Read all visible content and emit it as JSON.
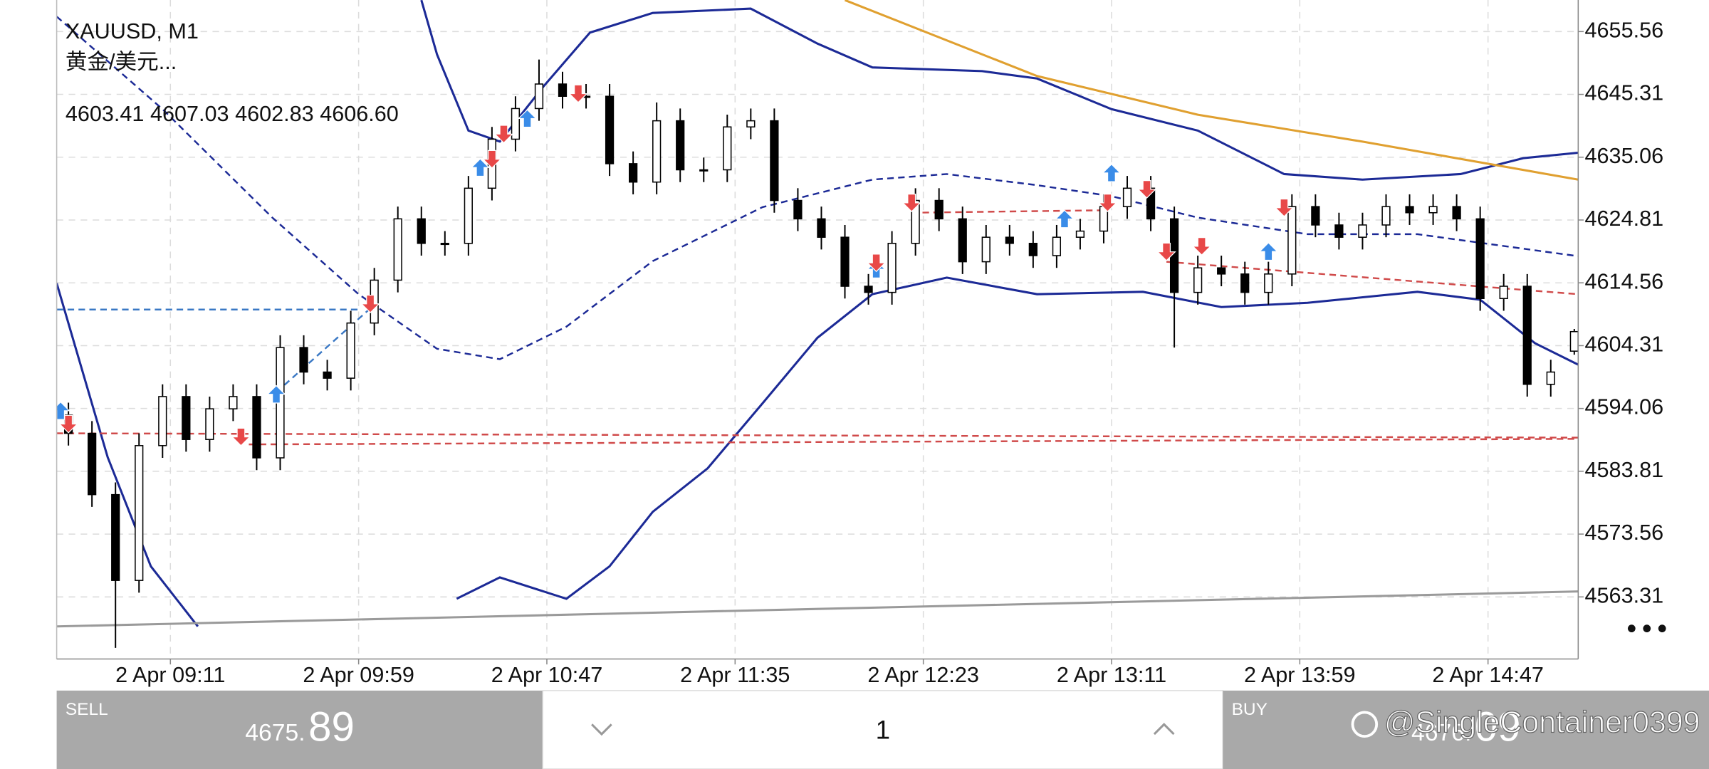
{
  "header": {
    "symbol": "XAUUSD, M1",
    "description": "黄金/美元...",
    "ohlc": "4603.41 4607.03 4602.83 4606.60"
  },
  "chart_data": {
    "type": "candlestick",
    "x": [
      3,
      9,
      15,
      21,
      27,
      33,
      39,
      45,
      51,
      57,
      63,
      69,
      75,
      81,
      87,
      93,
      99,
      105,
      111,
      117,
      123,
      129,
      135,
      141,
      147,
      153,
      159,
      165,
      171,
      177,
      183,
      189,
      195,
      201,
      207,
      213,
      219,
      225,
      231,
      237,
      243,
      249,
      255,
      261,
      267,
      273,
      279,
      285,
      291,
      297,
      303,
      309,
      315,
      321,
      327,
      333,
      339,
      345,
      351,
      357,
      363,
      369,
      375,
      381,
      387
    ],
    "open": [
      4593,
      4590,
      4580,
      4566,
      4588,
      4596,
      4589,
      4594,
      4596,
      4586,
      4604,
      4600,
      4599,
      4608,
      4615,
      4625,
      4621,
      4621,
      4630,
      4638,
      4643,
      4647,
      4645,
      4645,
      4634,
      4631,
      4641,
      4633,
      4633,
      4640,
      4641,
      4628,
      4625,
      4622,
      4614,
      4613,
      4621,
      4628,
      4625,
      4618,
      4622,
      4621,
      4619,
      4622,
      4623,
      4627,
      4630,
      4625,
      4613,
      4617,
      4616,
      4613,
      4616,
      4627,
      4624,
      4622,
      4624,
      4627,
      4626,
      4627,
      4625,
      4612,
      4614,
      4598,
      4603.41
    ],
    "high": [
      4595,
      4592,
      4582,
      4590,
      4598,
      4598,
      4596,
      4598,
      4598,
      4606,
      4606,
      4602,
      4610,
      4617,
      4627,
      4627,
      4623,
      4632,
      4640,
      4645,
      4651,
      4649,
      4647,
      4647,
      4636,
      4644,
      4643,
      4635,
      4642,
      4643,
      4643,
      4630,
      4627,
      4624,
      4616,
      4623,
      4630,
      4630,
      4627,
      4624,
      4624,
      4623,
      4624,
      4625,
      4629,
      4632,
      4632,
      4627,
      4619,
      4619,
      4618,
      4618,
      4629,
      4629,
      4626,
      4626,
      4629,
      4629,
      4629,
      4629,
      4627,
      4616,
      4616,
      4602,
      4607.03
    ],
    "low": [
      4588,
      4578,
      4555,
      4564,
      4586,
      4587,
      4587,
      4592,
      4584,
      4584,
      4598,
      4597,
      4597,
      4606,
      4613,
      4619,
      4619,
      4619,
      4628,
      4636,
      4641,
      4643,
      4643,
      4632,
      4629,
      4629,
      4631,
      4631,
      4631,
      4638,
      4626,
      4623,
      4620,
      4612,
      4611,
      4611,
      4619,
      4623,
      4616,
      4616,
      4619,
      4617,
      4617,
      4620,
      4621,
      4625,
      4623,
      4604,
      4611,
      4614,
      4611,
      4611,
      4614,
      4622,
      4620,
      4620,
      4622,
      4624,
      4624,
      4623,
      4610,
      4610,
      4596,
      4596,
      4602.83
    ],
    "close": [
      4590,
      4580,
      4566,
      4588,
      4596,
      4589,
      4594,
      4596,
      4586,
      4604,
      4600,
      4599,
      4608,
      4615,
      4625,
      4621,
      4621,
      4630,
      4638,
      4643,
      4647,
      4645,
      4645,
      4634,
      4631,
      4641,
      4633,
      4633,
      4640,
      4641,
      4628,
      4625,
      4622,
      4614,
      4613,
      4621,
      4628,
      4625,
      4618,
      4622,
      4621,
      4619,
      4622,
      4623,
      4627,
      4630,
      4625,
      4613,
      4617,
      4616,
      4613,
      4616,
      4627,
      4624,
      4622,
      4624,
      4627,
      4626,
      4627,
      4625,
      4612,
      4614,
      4598,
      4600,
      4606.6
    ],
    "up_color": "#ffffff",
    "down_color": "#000000",
    "wick_color": "#000000",
    "xlim": [
      0,
      388
    ],
    "xticks": [
      {
        "value": 29,
        "label": "2 Apr 09:11"
      },
      {
        "value": 77,
        "label": "2 Apr 09:59"
      },
      {
        "value": 125,
        "label": "2 Apr 10:47"
      },
      {
        "value": 173,
        "label": "2 Apr 11:35"
      },
      {
        "value": 221,
        "label": "2 Apr 12:23"
      },
      {
        "value": 269,
        "label": "2 Apr 13:11"
      },
      {
        "value": 317,
        "label": "2 Apr 13:59"
      },
      {
        "value": 365,
        "label": "2 Apr 14:47"
      }
    ],
    "ylim": [
      4553.18,
      4660.71
    ],
    "yticks": [
      4655.56,
      4645.31,
      4635.06,
      4624.81,
      4614.56,
      4604.31,
      4594.06,
      4583.81,
      4573.56,
      4563.31
    ],
    "grid": true,
    "lines": [
      {
        "color": "#1c2a96",
        "style": "solid",
        "x": [
          93,
          97,
          105,
          113,
          124,
          136,
          152,
          177,
          194,
          208,
          236,
          250,
          269,
          291,
          313,
          333,
          358,
          374,
          388
        ],
        "values": [
          4660.7,
          4651.8,
          4639.4,
          4637.6,
          4646.5,
          4655.4,
          4658.6,
          4659.3,
          4653.6,
          4649.7,
          4649.1,
          4647.9,
          4642.9,
          4639.4,
          4632.3,
          4631.4,
          4632.3,
          4634.9,
          4635.8
        ]
      },
      {
        "color": "#1c2a96",
        "style": "dashed",
        "x": [
          0,
          27,
          55,
          77,
          97,
          113,
          130,
          152,
          180,
          208,
          227,
          250,
          269,
          291,
          319,
          347,
          388
        ],
        "values": [
          4658.0,
          4642.9,
          4625.2,
          4612.7,
          4603.8,
          4602.1,
          4607.4,
          4618.1,
          4626.9,
          4631.4,
          4632.3,
          4630.5,
          4628.7,
          4625.2,
          4622.5,
          4622.5,
          4618.9
        ]
      },
      {
        "color": "#1c2a96",
        "style": "solid",
        "x": [
          0,
          13,
          24,
          36,
          66,
          102,
          113,
          130,
          141,
          152,
          166,
          180,
          194,
          208,
          227,
          250,
          277,
          297,
          319,
          347,
          363,
          377,
          388
        ],
        "values": [
          4614.5,
          4586.1,
          4568.3,
          4558.5,
          null,
          4563.0,
          4566.5,
          4563.0,
          4568.3,
          4577.2,
          4584.3,
          4594.9,
          4605.6,
          4612.7,
          4615.4,
          4612.7,
          4613.1,
          4610.6,
          4611.3,
          4613.1,
          4611.8,
          4604.7,
          4601.2
        ]
      },
      {
        "color": "#e0a030",
        "style": "solid",
        "x": [
          201,
          250,
          291,
          333,
          388
        ],
        "values": [
          4660.7,
          4648.3,
          4642.0,
          4637.6,
          4631.4
        ]
      },
      {
        "color": "#9a9a9a",
        "style": "solid",
        "x": [
          0,
          388
        ],
        "values": [
          4558.5,
          4564.2
        ]
      },
      {
        "color": "#d04a4a",
        "style": "dashed",
        "x": [
          0,
          388
        ],
        "values": [
          4590.0,
          4589.3
        ]
      },
      {
        "color": "#d04a4a",
        "style": "dashed",
        "x": [
          49,
          388
        ],
        "values": [
          4588.2,
          4589.1
        ]
      },
      {
        "color": "#d04a4a",
        "style": "dashed",
        "x": [
          218,
          268
        ],
        "values": [
          4626.0,
          4626.4
        ]
      },
      {
        "color": "#d04a4a",
        "style": "dashed",
        "x": [
          283,
          388
        ],
        "values": [
          4618.0,
          4612.7
        ]
      },
      {
        "color": "#3a78c4",
        "style": "dashed",
        "x": [
          0,
          77
        ],
        "values": [
          4610.2,
          4610.2
        ]
      },
      {
        "color": "#3a78c4",
        "style": "dashed",
        "x": [
          56,
          80
        ],
        "values": [
          4596.7,
          4610.4
        ]
      }
    ],
    "buy_signals": {
      "color": "#3a8ce8",
      "x": [
        1,
        56,
        108,
        120,
        209,
        257,
        269,
        309
      ],
      "values": [
        4593.5,
        4596.2,
        4633.2,
        4641.2,
        4616.6,
        4624.8,
        4632.3,
        4619.5
      ]
    },
    "sell_signals": {
      "color": "#e84848",
      "x": [
        3,
        47,
        80,
        111,
        114,
        133,
        209,
        218,
        268,
        278,
        283,
        292,
        313
      ],
      "values": [
        4591.7,
        4589.6,
        4611.3,
        4634.9,
        4639.0,
        4645.6,
        4618.0,
        4627.8,
        4627.8,
        4630.0,
        4619.8,
        4620.7,
        4627.0
      ]
    }
  },
  "trade_panel": {
    "sell_label": "SELL",
    "sell_price_main": "4675.",
    "sell_price_pips": "89",
    "volume": "1",
    "buy_label": "BUY",
    "buy_price_main": "4676.",
    "buy_price_pips": "09"
  },
  "watermark": "@SingleContainer0399"
}
